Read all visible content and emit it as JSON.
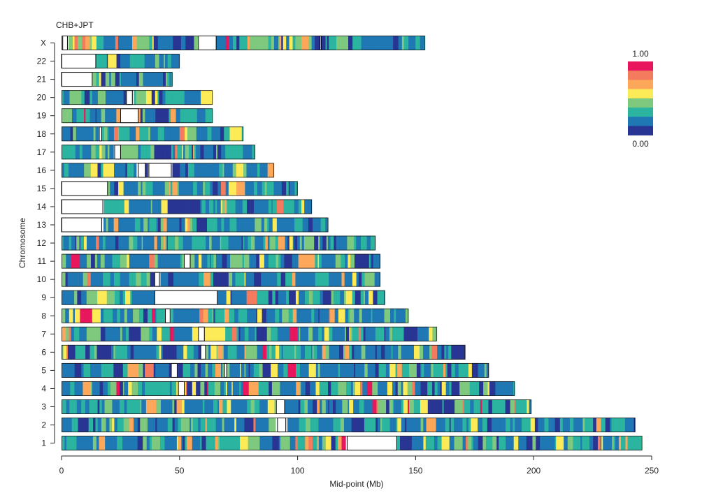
{
  "chart_data": {
    "type": "heatmap",
    "title": "CHB+JPT",
    "xlabel": "Mid-point (Mb)",
    "ylabel": "Chromosome",
    "xlim": [
      0,
      250
    ],
    "xticks": [
      0,
      50,
      100,
      150,
      200,
      250
    ],
    "legend": {
      "max_label": "1.00",
      "min_label": "0.00",
      "placement": "right",
      "colors": [
        "#e8175d",
        "#f47b5e",
        "#fca75a",
        "#fdea57",
        "#7fc97f",
        "#2bb5a0",
        "#1f78b4",
        "#283593"
      ]
    },
    "chromosomes": [
      {
        "name": "X",
        "length": 154,
        "gaps": [
          [
            0.5,
            2.5
          ],
          [
            58,
            65.5
          ],
          [
            109.5,
            110
          ]
        ],
        "seed": 23
      },
      {
        "name": "22",
        "length": 50,
        "gaps": [
          [
            0,
            14.5
          ]
        ],
        "seed": 22
      },
      {
        "name": "21",
        "length": 47,
        "gaps": [
          [
            0,
            13
          ]
        ],
        "seed": 21
      },
      {
        "name": "20",
        "length": 64,
        "gaps": [
          [
            27.5,
            30
          ]
        ],
        "seed": 20
      },
      {
        "name": "19",
        "length": 64,
        "gaps": [
          [
            25,
            32.5
          ]
        ],
        "seed": 19
      },
      {
        "name": "18",
        "length": 77,
        "gaps": [
          [
            16,
            17
          ]
        ],
        "seed": 18
      },
      {
        "name": "17",
        "length": 82,
        "gaps": [
          [
            22.5,
            25
          ]
        ],
        "seed": 17
      },
      {
        "name": "16",
        "length": 90,
        "gaps": [
          [
            32.5,
            35.5
          ],
          [
            37,
            46.5
          ]
        ],
        "seed": 16
      },
      {
        "name": "15",
        "length": 100,
        "gaps": [
          [
            0,
            19.5
          ]
        ],
        "seed": 15
      },
      {
        "name": "14",
        "length": 106,
        "gaps": [
          [
            0,
            17.5
          ]
        ],
        "seed": 14
      },
      {
        "name": "13",
        "length": 113,
        "gaps": [
          [
            0,
            17
          ]
        ],
        "seed": 13
      },
      {
        "name": "12",
        "length": 133,
        "gaps": [],
        "seed": 12
      },
      {
        "name": "11",
        "length": 135,
        "gaps": [
          [
            52,
            54.5
          ]
        ],
        "seed": 11
      },
      {
        "name": "10",
        "length": 135,
        "gaps": [
          [
            39.5,
            41.5
          ]
        ],
        "seed": 10
      },
      {
        "name": "9",
        "length": 137,
        "gaps": [
          [
            39.5,
            66
          ]
        ],
        "seed": 9
      },
      {
        "name": "8",
        "length": 147,
        "gaps": [
          [
            44,
            46
          ]
        ],
        "seed": 8
      },
      {
        "name": "7",
        "length": 159,
        "gaps": [
          [
            58,
            60.5
          ]
        ],
        "seed": 7
      },
      {
        "name": "6",
        "length": 171,
        "gaps": [
          [
            59,
            61
          ]
        ],
        "seed": 6
      },
      {
        "name": "5",
        "length": 181,
        "gaps": [
          [
            46.5,
            49
          ],
          [
            69,
            70
          ]
        ],
        "seed": 5
      },
      {
        "name": "4",
        "length": 192,
        "gaps": [
          [
            49.5,
            52
          ]
        ],
        "seed": 4
      },
      {
        "name": "3",
        "length": 199,
        "gaps": [
          [
            91,
            94.5
          ]
        ],
        "seed": 3
      },
      {
        "name": "2",
        "length": 243,
        "gaps": [
          [
            91.5,
            95
          ]
        ],
        "seed": 2
      },
      {
        "name": "1",
        "length": 246,
        "gaps": [
          [
            121,
            142
          ]
        ],
        "seed": 1
      }
    ]
  }
}
